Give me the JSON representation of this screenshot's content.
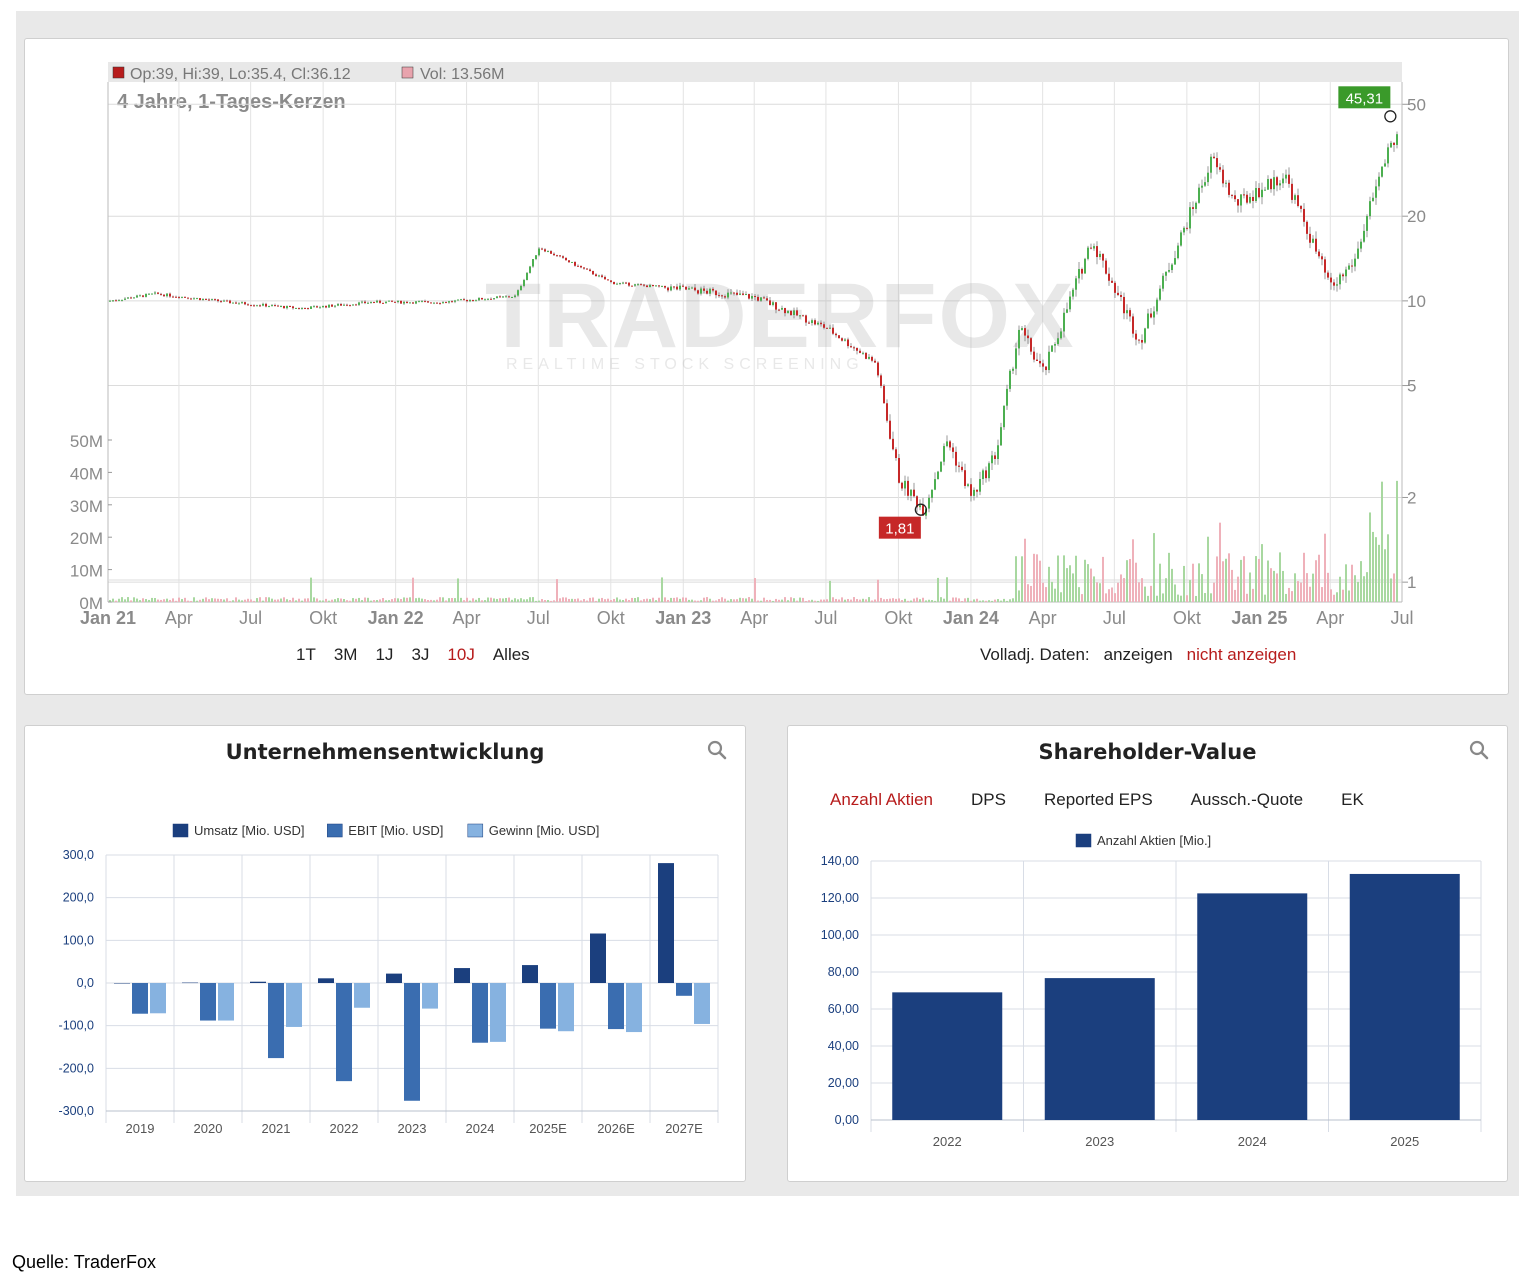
{
  "price_chart": {
    "ohlc_label": "Op:39, Hi:39, Lo:35.4, Cl:36.12",
    "vol_label": "Vol: 13.56M",
    "subtitle": "4 Jahre, 1-Tages-Kerzen",
    "watermark": "TRADERFOX",
    "watermark_sub": "REALTIME STOCK SCREENING",
    "high_marker": "45,31",
    "low_marker": "1,81",
    "x_ticks": [
      "Jan 21",
      "Apr",
      "Jul",
      "Okt",
      "Jan 22",
      "Apr",
      "Jul",
      "Okt",
      "Jan 23",
      "Apr",
      "Jul",
      "Okt",
      "Jan 24",
      "Apr",
      "Jul",
      "Okt",
      "Jan 25",
      "Apr",
      "Jul"
    ],
    "y_ticks": [
      "50",
      "20",
      "10",
      "5",
      "2",
      "1"
    ],
    "vol_ticks": [
      "50M",
      "40M",
      "30M",
      "20M",
      "10M",
      "0M"
    ],
    "colors": {
      "up": "#4caf50",
      "down": "#c62828",
      "high": "#3a9a2a",
      "low": "#c62828"
    }
  },
  "controls": {
    "ranges": [
      "1T",
      "3M",
      "1J",
      "3J",
      "10J",
      "Alles"
    ],
    "active_range": "10J",
    "volladj_label": "Volladj. Daten:",
    "show": "anzeigen",
    "hide": "nicht anzeigen"
  },
  "dev_panel": {
    "title": "Unternehmensentwicklung"
  },
  "sv_panel": {
    "title": "Shareholder-Value",
    "tabs": [
      "Anzahl Aktien",
      "DPS",
      "Reported EPS",
      "Aussch.-Quote",
      "EK"
    ],
    "active_tab": "Anzahl Aktien"
  },
  "chart_data": [
    {
      "type": "line",
      "title": "4 Jahre, 1-Tages-Kerzen",
      "scale": "log",
      "ylim": [
        0.85,
        60
      ],
      "x": [
        "2021-01",
        "2021-03",
        "2021-06",
        "2021-09",
        "2021-12",
        "2022-03",
        "2022-06",
        "2022-07",
        "2022-10",
        "2023-01",
        "2023-04",
        "2023-07",
        "2023-09",
        "2023-10",
        "2023-11",
        "2023-12",
        "2024-01",
        "2024-02",
        "2024-03",
        "2024-04",
        "2024-06",
        "2024-08",
        "2024-09",
        "2024-11",
        "2024-12",
        "2025-02",
        "2025-04",
        "2025-05",
        "2025-06",
        "2025-07"
      ],
      "series": [
        {
          "values": [
            10.0,
            10.6,
            9.9,
            9.4,
            9.9,
            9.9,
            10.4,
            15.5,
            11.6,
            11.0,
            10.3,
            8.0,
            6.0,
            2.3,
            1.81,
            3.2,
            2.0,
            2.9,
            8.0,
            5.5,
            16.5,
            7.2,
            12.0,
            32.0,
            22.0,
            28.0,
            11.0,
            14.0,
            28.0,
            45.31
          ]
        }
      ],
      "annotations": {
        "max": 45.31,
        "min": 1.81
      }
    },
    {
      "type": "bar",
      "title": "Unternehmensentwicklung",
      "categories": [
        "2019",
        "2020",
        "2021",
        "2022",
        "2023",
        "2024",
        "2025E",
        "2026E",
        "2027E"
      ],
      "series": [
        {
          "name": "Umsatz [Mio. USD]",
          "values": [
            0,
            1,
            3,
            11,
            22,
            35,
            42,
            116,
            281
          ]
        },
        {
          "name": "EBIT [Mio. USD]",
          "values": [
            -72,
            -88,
            -176,
            -230,
            -276,
            -140,
            -107,
            -108,
            -30
          ]
        },
        {
          "name": "Gewinn [Mio. USD]",
          "values": [
            -71,
            -88,
            -103,
            -58,
            -60,
            -138,
            -113,
            -115,
            -96
          ]
        }
      ],
      "ylim": [
        -300,
        300
      ],
      "y_ticks": [
        "300,0",
        "200,0",
        "100,0",
        "0,0",
        "-100,0",
        "-200,0",
        "-300,0"
      ],
      "legend": "top",
      "colors": [
        "#1b3f7e",
        "#3a6db0",
        "#86b2e0"
      ]
    },
    {
      "type": "bar",
      "title": "Anzahl Aktien",
      "categories": [
        "2022",
        "2023",
        "2024",
        "2025"
      ],
      "series": [
        {
          "name": "Anzahl Aktien [Mio.]",
          "values": [
            69.0,
            76.7,
            122.5,
            133.0
          ]
        }
      ],
      "ylim": [
        0,
        140
      ],
      "y_ticks": [
        "140,00",
        "120,00",
        "100,00",
        "80,00",
        "60,00",
        "40,00",
        "20,00",
        "0,00"
      ],
      "legend": "top",
      "colors": [
        "#1b3f7e"
      ]
    }
  ],
  "source": "Quelle: TraderFox"
}
